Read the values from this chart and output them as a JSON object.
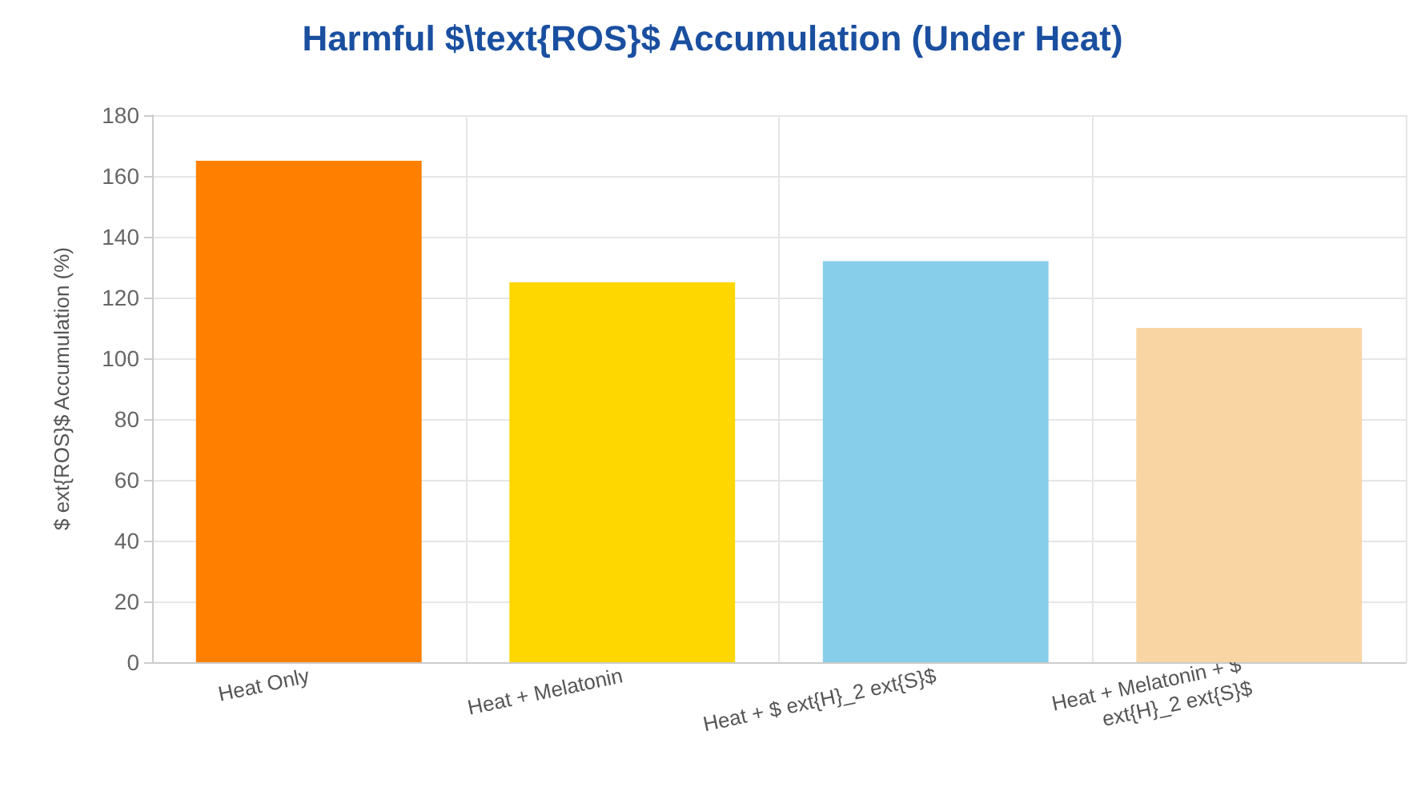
{
  "chart_data": {
    "type": "bar",
    "title": "Harmful $\\text{ROS}$ Accumulation (Under Heat)",
    "ylabel": "$ ext{ROS}$ Accumulation (%)",
    "categories": [
      "Heat Only",
      "Heat + Melatonin",
      "Heat + $ ext{H}_2 ext{S}$",
      "Heat + Melatonin + $ ext{H}_2 ext{S}$"
    ],
    "values": [
      165,
      125,
      132,
      110
    ],
    "colors": [
      "#ff7f00",
      "#ffd700",
      "#87ceeb",
      "#f8d5a3"
    ],
    "ylim": [
      0,
      180
    ],
    "yticks": [
      0,
      20,
      40,
      60,
      80,
      100,
      120,
      140,
      160,
      180
    ],
    "grid": true
  }
}
